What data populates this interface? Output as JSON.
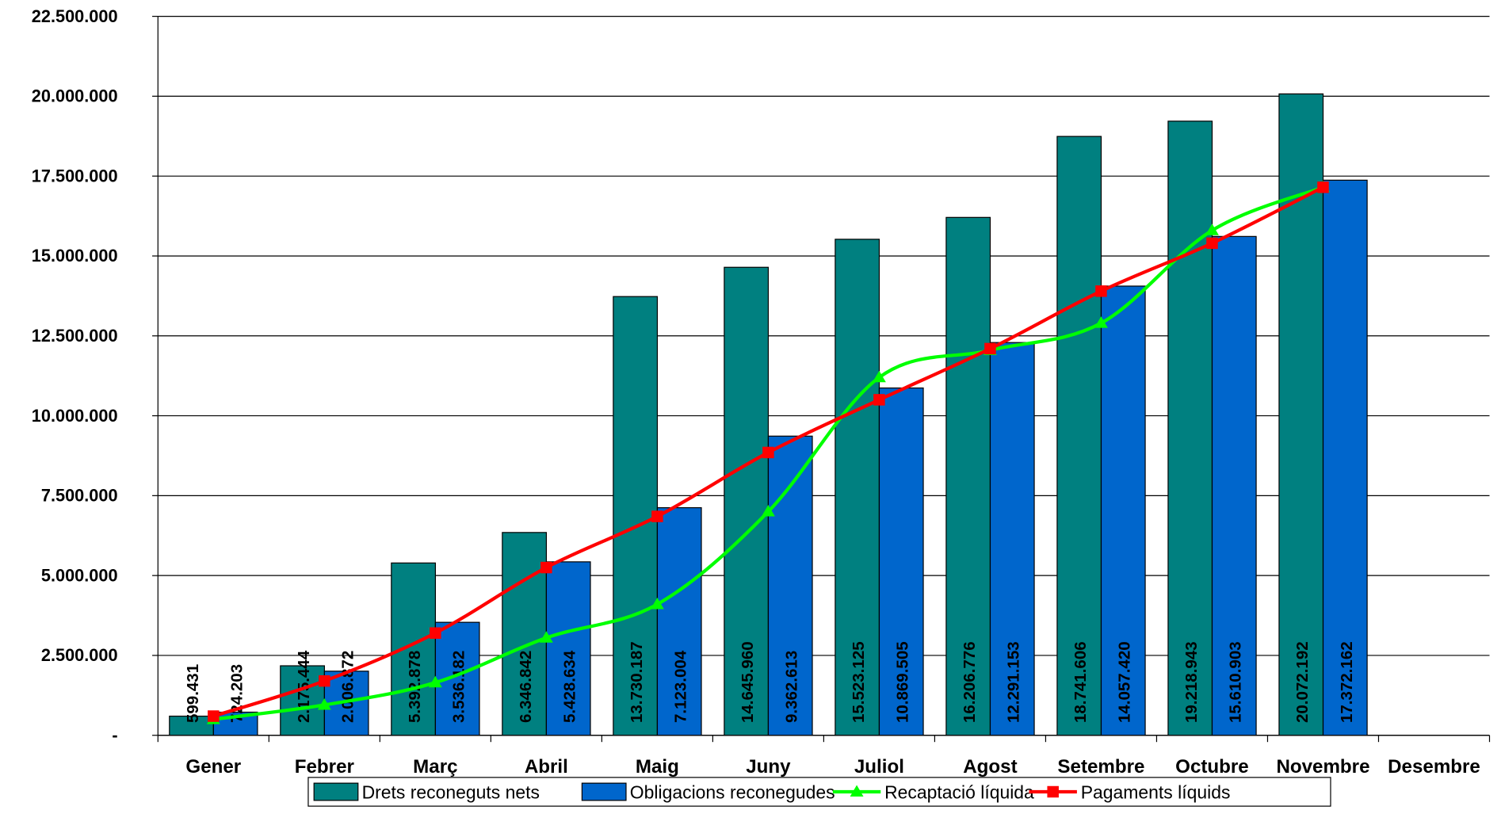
{
  "chart_data": {
    "type": "bar",
    "categories": [
      "Gener",
      "Febrer",
      "Març",
      "Abril",
      "Maig",
      "Juny",
      "Juliol",
      "Agost",
      "Setembre",
      "Octubre",
      "Novembre",
      "Desembre"
    ],
    "series": [
      {
        "name": "Drets reconeguts nets",
        "color": "#008080",
        "kind": "bar",
        "values": [
          599431,
          2175444,
          5392878,
          6346842,
          13730187,
          14645960,
          15523125,
          16206776,
          18741606,
          19218943,
          20072192,
          null
        ],
        "value_labels": [
          "599.431",
          "2.175.444",
          "5.392.878",
          "6.346.842",
          "13.730.187",
          "14.645.960",
          "15.523.125",
          "16.206.776",
          "18.741.606",
          "19.218.943",
          "20.072.192",
          null
        ]
      },
      {
        "name": "Obligacions reconegudes",
        "color": "#0066cc",
        "kind": "bar",
        "values": [
          724203,
          2006872,
          3536182,
          5428634,
          7123004,
          9362613,
          10869505,
          12291153,
          14057420,
          15610903,
          17372162,
          null
        ],
        "value_labels": [
          "724.203",
          "2.006.872",
          "3.536.182",
          "5.428.634",
          "7.123.004",
          "9.362.613",
          "10.869.505",
          "12.291.153",
          "14.057.420",
          "15.610.903",
          "17.372.162",
          null
        ]
      },
      {
        "name": "Recaptació líquida",
        "color": "#00ff00",
        "kind": "line",
        "marker": "triangle",
        "values": [
          500000,
          950000,
          1650000,
          3050000,
          4100000,
          7000000,
          11200000,
          12050000,
          12900000,
          15800000,
          17150000,
          null
        ]
      },
      {
        "name": "Pagaments líquids",
        "color": "#ff0000",
        "kind": "line",
        "marker": "square",
        "values": [
          600000,
          1700000,
          3200000,
          5250000,
          6850000,
          8850000,
          10500000,
          12100000,
          13900000,
          15400000,
          17150000,
          null
        ]
      }
    ],
    "ylim": [
      0,
      22500000
    ],
    "yticks": [
      {
        "value": 0,
        "label": "-"
      },
      {
        "value": 2500000,
        "label": "2.500.000"
      },
      {
        "value": 5000000,
        "label": "5.000.000"
      },
      {
        "value": 7500000,
        "label": "7.500.000"
      },
      {
        "value": 10000000,
        "label": "10.000.000"
      },
      {
        "value": 12500000,
        "label": "12.500.000"
      },
      {
        "value": 15000000,
        "label": "15.000.000"
      },
      {
        "value": 17500000,
        "label": "17.500.000"
      },
      {
        "value": 20000000,
        "label": "20.000.000"
      },
      {
        "value": 22500000,
        "label": "22.500.000"
      }
    ],
    "grid": true,
    "legend": "bottom"
  }
}
